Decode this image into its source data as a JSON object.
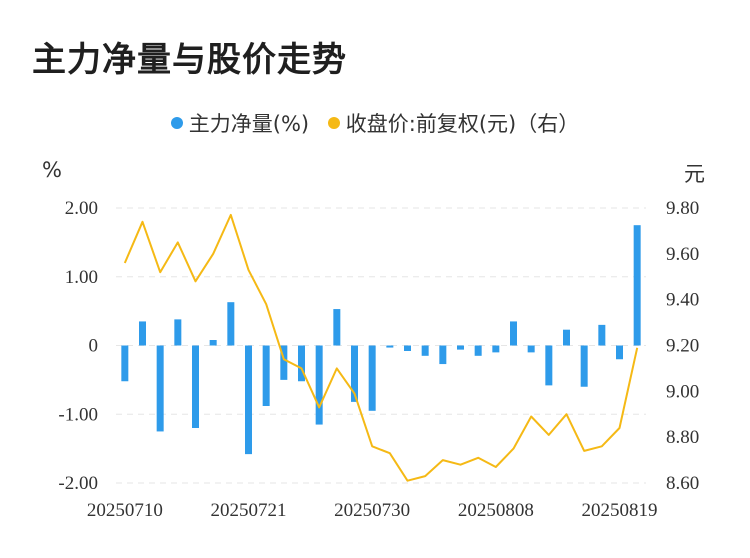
{
  "title": "主力净量与股价走势",
  "chart_data": {
    "type": "bar+line",
    "legend": [
      {
        "label": "主力净量(%)",
        "color": "#2E9BEA"
      },
      {
        "label": "收盘价:前复权(元)（右）",
        "color": "#F5B915"
      }
    ],
    "ylabel_left": "%",
    "ylabel_right": "元",
    "y_left": {
      "min": -2.0,
      "max": 2.0,
      "ticks": [
        "2.00",
        "1.00",
        "0",
        "-1.00",
        "-2.00"
      ]
    },
    "y_right": {
      "min": 8.6,
      "max": 9.8,
      "ticks": [
        "9.80",
        "9.60",
        "9.40",
        "9.20",
        "9.00",
        "8.80",
        "8.60"
      ]
    },
    "x_tick_labels": [
      {
        "label": "20250710",
        "index": 0
      },
      {
        "label": "20250721",
        "index": 7
      },
      {
        "label": "20250730",
        "index": 14
      },
      {
        "label": "20250808",
        "index": 21
      },
      {
        "label": "20250819",
        "index": 28
      }
    ],
    "series": [
      {
        "name": "主力净量(%)",
        "type": "bar",
        "values": [
          -0.52,
          0.35,
          -1.25,
          0.38,
          -1.2,
          0.08,
          0.63,
          -1.58,
          -0.88,
          -0.5,
          -0.52,
          -1.15,
          0.53,
          -0.82,
          -0.95,
          -0.03,
          -0.08,
          -0.15,
          -0.27,
          -0.06,
          -0.15,
          -0.1,
          0.35,
          -0.1,
          -0.58,
          0.23,
          -0.6,
          0.3,
          -0.2,
          1.75
        ]
      },
      {
        "name": "收盘价:前复权(元)（右）",
        "type": "line",
        "values": [
          9.56,
          9.74,
          9.52,
          9.65,
          9.48,
          9.6,
          9.77,
          9.53,
          9.38,
          9.14,
          9.1,
          8.93,
          9.1,
          8.99,
          8.76,
          8.73,
          8.61,
          8.63,
          8.7,
          8.68,
          8.71,
          8.67,
          8.75,
          8.89,
          8.81,
          8.9,
          8.74,
          8.76,
          8.84,
          9.19
        ]
      }
    ]
  }
}
